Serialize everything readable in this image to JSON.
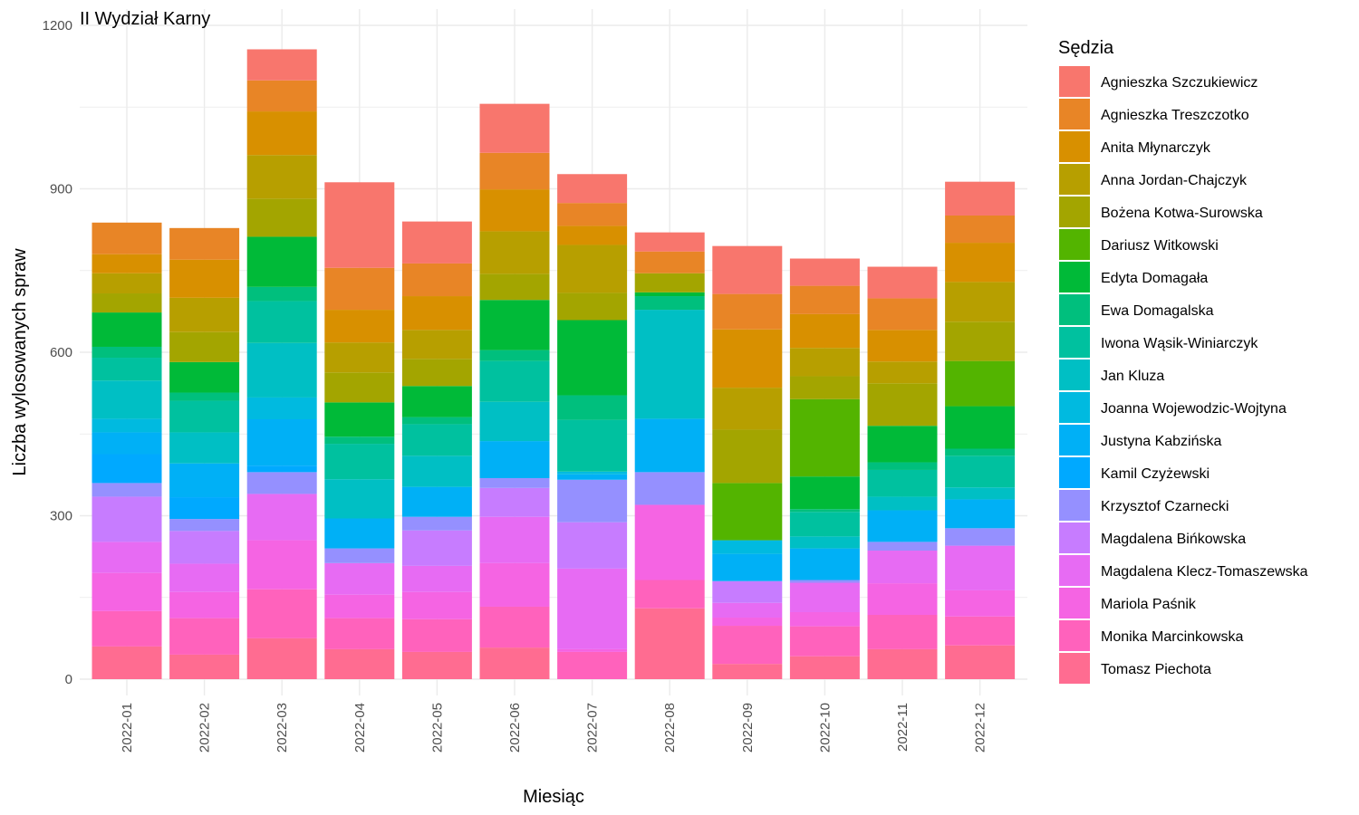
{
  "chart_data": {
    "type": "bar",
    "stacked": true,
    "title": "II Wydział Karny",
    "xlabel": "Miesiąc",
    "ylabel": "Liczba wylosowanych spraw",
    "ylim": [
      0,
      1200
    ],
    "yticks": [
      0,
      300,
      600,
      900,
      1200
    ],
    "grid": true,
    "legend_title": "Sędzia",
    "legend_position": "right",
    "categories": [
      "2022-01",
      "2022-02",
      "2022-03",
      "2022-04",
      "2022-05",
      "2022-06",
      "2022-07",
      "2022-08",
      "2022-09",
      "2022-10",
      "2022-11",
      "2022-12"
    ],
    "series": [
      {
        "name": "Tomasz Piechota",
        "color": "#FF6C91",
        "values": [
          60,
          45,
          75,
          55,
          50,
          58,
          0,
          130,
          28,
          42,
          55,
          62
        ]
      },
      {
        "name": "Monika Marcinkowska",
        "color": "#FF62BC",
        "values": [
          65,
          67,
          90,
          57,
          60,
          75,
          50,
          52,
          70,
          55,
          63,
          53
        ]
      },
      {
        "name": "Mariola Paśnik",
        "color": "#F564E3",
        "values": [
          70,
          48,
          90,
          43,
          50,
          80,
          5,
          138,
          15,
          26,
          58,
          48
        ]
      },
      {
        "name": "Magdalena Klecz-Tomaszewska",
        "color": "#E76BF3",
        "values": [
          57,
          52,
          85,
          58,
          48,
          85,
          148,
          0,
          27,
          54,
          60,
          82
        ]
      },
      {
        "name": "Magdalena Bińkowska",
        "color": "#C77CFF",
        "values": [
          83,
          60,
          0,
          0,
          65,
          53,
          85,
          0,
          40,
          0,
          0,
          0
        ]
      },
      {
        "name": "Krzysztof Czarnecki",
        "color": "#9590FF",
        "values": [
          25,
          22,
          40,
          27,
          25,
          18,
          78,
          60,
          0,
          5,
          16,
          32
        ]
      },
      {
        "name": "Kamil Czyżewski",
        "color": "#00A9FF",
        "values": [
          53,
          40,
          12,
          0,
          0,
          0,
          0,
          0,
          0,
          0,
          0,
          0
        ]
      },
      {
        "name": "Justyna Kabzińska",
        "color": "#00B0F6",
        "values": [
          40,
          62,
          85,
          55,
          55,
          68,
          10,
          98,
          50,
          58,
          58,
          53
        ]
      },
      {
        "name": "Joanna Wojewodzic-Wojtyna",
        "color": "#00BAE0",
        "values": [
          25,
          0,
          40,
          0,
          0,
          0,
          5,
          0,
          25,
          0,
          0,
          0
        ]
      },
      {
        "name": "Jan Kluza",
        "color": "#00BFC4",
        "values": [
          70,
          57,
          100,
          72,
          57,
          72,
          0,
          200,
          0,
          22,
          25,
          22
        ]
      },
      {
        "name": "Iwona Wąsik-Winiarczyk",
        "color": "#00C19F",
        "values": [
          42,
          58,
          77,
          65,
          58,
          75,
          95,
          0,
          0,
          45,
          49,
          58
        ]
      },
      {
        "name": "Ewa Domagalska",
        "color": "#00BF7D",
        "values": [
          20,
          15,
          26,
          13,
          13,
          20,
          45,
          25,
          0,
          5,
          14,
          13
        ]
      },
      {
        "name": "Edyta Domagała",
        "color": "#00BA38",
        "values": [
          63,
          56,
          92,
          63,
          57,
          92,
          138,
          7,
          0,
          60,
          67,
          78
        ]
      },
      {
        "name": "Dariusz Witkowski",
        "color": "#53B400",
        "values": [
          0,
          0,
          0,
          0,
          0,
          0,
          0,
          0,
          105,
          142,
          0,
          83
        ]
      },
      {
        "name": "Bożena Kotwa-Surowska",
        "color": "#A3A500",
        "values": [
          35,
          55,
          70,
          55,
          50,
          48,
          50,
          35,
          98,
          42,
          78,
          72
        ]
      },
      {
        "name": "Anna Jordan-Chajczyk",
        "color": "#B79F00",
        "values": [
          37,
          63,
          80,
          55,
          53,
          78,
          88,
          0,
          77,
          52,
          40,
          73
        ]
      },
      {
        "name": "Anita Młynarczyk",
        "color": "#D89000",
        "values": [
          35,
          70,
          80,
          60,
          62,
          77,
          35,
          0,
          107,
          62,
          58,
          72
        ]
      },
      {
        "name": "Agnieszka Treszczotko",
        "color": "#E88526",
        "values": [
          58,
          58,
          57,
          77,
          60,
          67,
          42,
          40,
          65,
          52,
          58,
          50
        ]
      },
      {
        "name": "Agnieszka Szczukiewicz",
        "color": "#F8766D",
        "values": [
          0,
          0,
          57,
          157,
          77,
          90,
          53,
          35,
          88,
          50,
          58,
          62
        ]
      }
    ]
  }
}
